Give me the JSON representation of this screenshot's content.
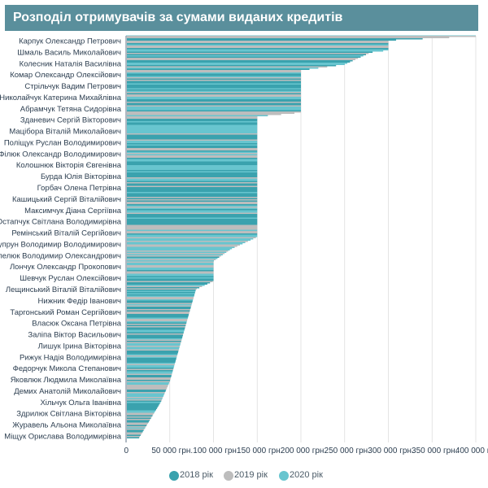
{
  "title": "Розподіл отримувачів за сумами виданих кредитів",
  "colors": {
    "title_bg": "#5a8f9c",
    "series_2018": "#3aa2ae",
    "series_2019": "#bdbdbd",
    "series_2020": "#68c5cf",
    "axis": "#7a8a99",
    "grid": "#dddddd",
    "text": "#2c3e50"
  },
  "chart_data": {
    "type": "bar",
    "orientation": "horizontal",
    "title": "Розподіл отримувачів за сумами виданих кредитів",
    "xlim": [
      0,
      400000
    ],
    "x_ticks": [
      0,
      50000,
      100000,
      150000,
      200000,
      250000,
      300000,
      350000,
      400000
    ],
    "x_tick_labels": [
      "0",
      "50 000 грн.",
      "100 000 грн.",
      "150 000 грн.",
      "200 000 грн.",
      "250 000 грн.",
      "300 000 грн.",
      "350 000 грн.",
      "400 000 грн."
    ],
    "grid": true,
    "legend_position": "bottom",
    "legend": [
      "2018 рік",
      "2019 рік",
      "2020 рік"
    ],
    "labeled_recipients": [
      "Карпук Олександр Петрович",
      "Шмаль Василь Миколайович",
      "Колесник Наталія Василівна",
      "Комар Олександр Олексійович",
      "Стрільчук Вадим Петрович",
      "Николайчук Катерина Михайлівна",
      "Абрамчук Тетяна Сидорівна",
      "Зданевич Сергій Вікторович",
      "Мацібора Віталій Миколайович",
      "Поліщук Руслан Володимирович",
      "Філюк Олександр Володимирович",
      "Колошнюк Вікторія Євгенівна",
      "Бурда Юлія Вікторівна",
      "Горбач Олена Петрівна",
      "Кашицький Сергій Віталійович",
      "Максимчук Діана Сергіївна",
      "Остапчук Світлана Володимирівна",
      "Ремінський Віталій Сергійович",
      "Супрун Володимир Володимирович",
      "Шепелюк Володимир Олександрович",
      "Лончук Олександр Прокопович",
      "Шевчук Руслан Олексійович",
      "Лещинський Віталій Віталійович",
      "Нижник Федір Іванович",
      "Таргонський Роман Сергійович",
      "Власюк Оксана Петрівна",
      "Заліпа Віктор Васильович",
      "Лишук Ірина Вікторівна",
      "Рижук Надія Володимирівна",
      "Федорчук Микола Степанович",
      "Яковлюк Людмила Миколаївна",
      "Демих Анатолій Миколайович",
      "Хільчук Ольга Іванівна",
      "Здрилюк Світлана Вікторівна",
      "Журавель Альона Миколаївна",
      "Міщук Орислава Володимирівна"
    ],
    "bar_profile": [
      {
        "rank": 0.0,
        "value": 400000
      },
      {
        "rank": 0.01,
        "value": 300000
      },
      {
        "rank": 0.035,
        "value": 300000
      },
      {
        "rank": 0.04,
        "value": 280000
      },
      {
        "rank": 0.07,
        "value": 250000
      },
      {
        "rank": 0.085,
        "value": 200000
      },
      {
        "rank": 0.19,
        "value": 200000
      },
      {
        "rank": 0.2,
        "value": 150000
      },
      {
        "rank": 0.22,
        "value": 150000
      },
      {
        "rank": 0.5,
        "value": 150000
      },
      {
        "rank": 0.53,
        "value": 120000
      },
      {
        "rank": 0.56,
        "value": 100000
      },
      {
        "rank": 0.61,
        "value": 100000
      },
      {
        "rank": 0.63,
        "value": 80000
      },
      {
        "rank": 0.86,
        "value": 50000
      },
      {
        "rank": 0.91,
        "value": 40000
      },
      {
        "rank": 1.0,
        "value": 15000
      }
    ]
  }
}
